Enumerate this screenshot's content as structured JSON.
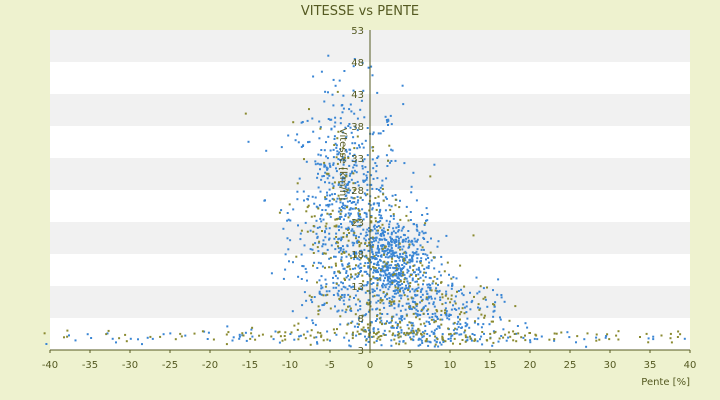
{
  "chart_data": {
    "type": "scatter",
    "title": "VITESSE vs PENTE",
    "xlabel": "Pente [%]",
    "ylabel": "Vitesse [km/h]",
    "xlim": [
      -40,
      40
    ],
    "ylim": [
      3,
      53
    ],
    "x_ticks": [
      -40,
      -35,
      -30,
      -25,
      -20,
      -15,
      -10,
      -5,
      0,
      5,
      10,
      15,
      20,
      25,
      30,
      35,
      40
    ],
    "y_ticks": [
      3,
      8,
      13,
      18,
      23,
      28,
      33,
      38,
      43,
      48,
      53
    ],
    "grid": true,
    "legend": "none",
    "colors": {
      "background": "#eef2cf",
      "plot_band_light": "#ffffff",
      "plot_band_dark": "#f1f1f1",
      "axis": "#555a22",
      "series_blue": "#3a86d4",
      "series_olive": "#8a8a30"
    },
    "series": [
      {
        "color": "#3a86d4",
        "clusters": [
          {
            "cx": -3,
            "cy": 24,
            "sx": 3.5,
            "sy": 10,
            "n": 700
          },
          {
            "cx": 3,
            "cy": 16,
            "sx": 2.5,
            "sy": 4,
            "n": 650
          },
          {
            "cx": 8,
            "cy": 8,
            "sx": 4,
            "sy": 3,
            "n": 250
          },
          {
            "cx": 0,
            "cy": 5,
            "sx": 20,
            "sy": 0.8,
            "n": 120
          }
        ]
      },
      {
        "color": "#8a8a30",
        "clusters": [
          {
            "cx": -2,
            "cy": 21,
            "sx": 4,
            "sy": 9,
            "n": 220
          },
          {
            "cx": 5,
            "cy": 10,
            "sx": 5,
            "sy": 4,
            "n": 200
          },
          {
            "cx": 0,
            "cy": 5.2,
            "sx": 22,
            "sy": 0.6,
            "n": 160
          }
        ]
      }
    ]
  }
}
